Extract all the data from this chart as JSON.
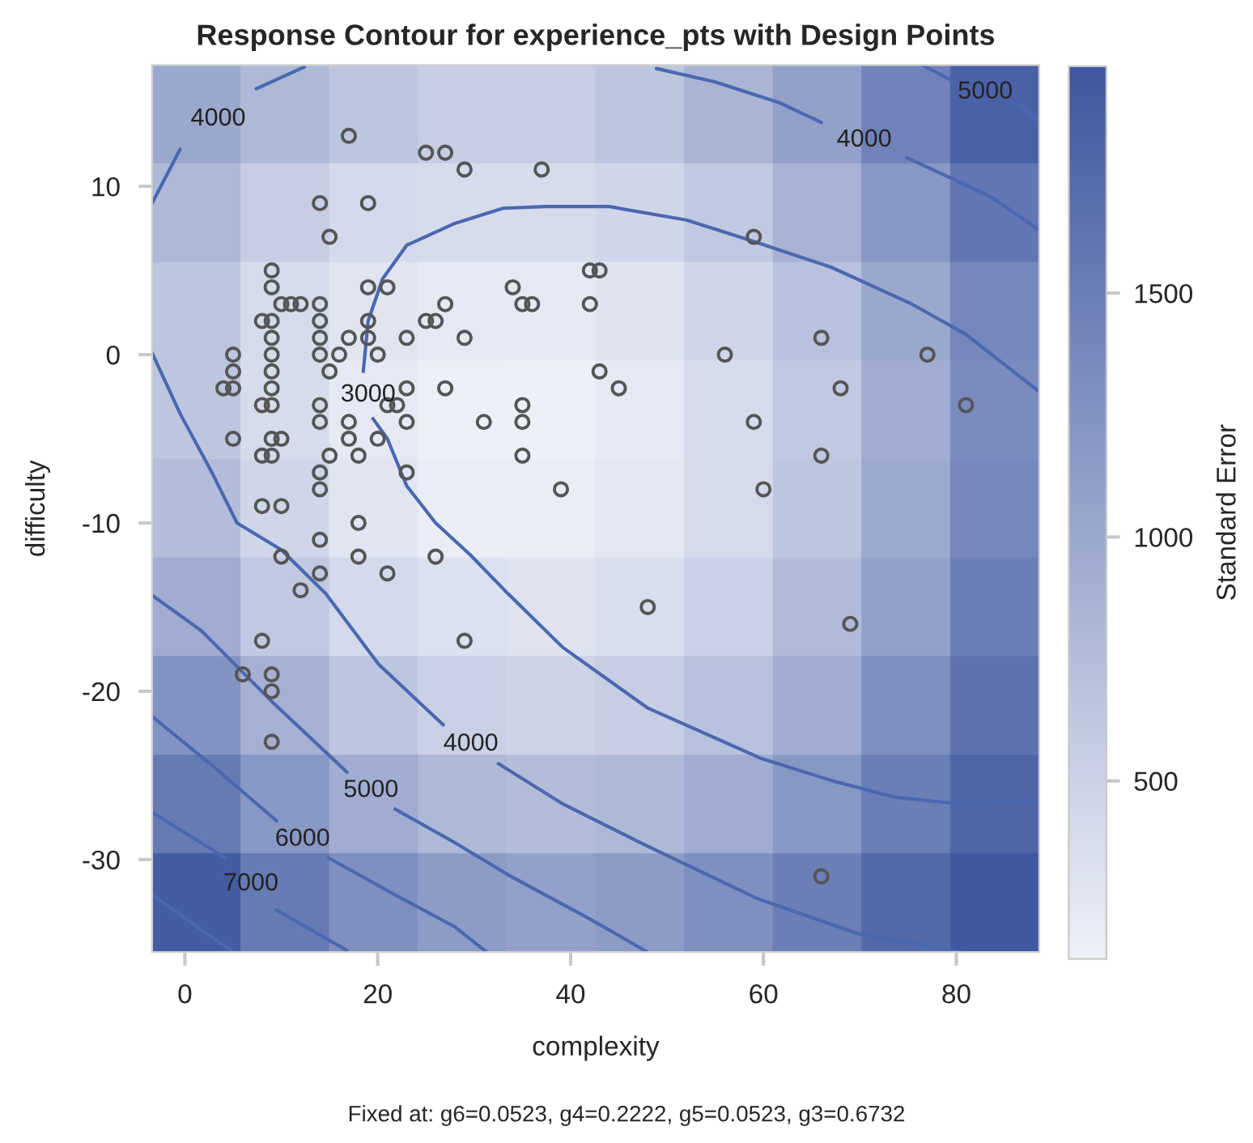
{
  "chart_data": {
    "type": "heatmap",
    "title": "Response Contour for experience_pts with Design Points",
    "xlabel": "complexity",
    "ylabel": "difficulty",
    "clabel": "Standard Error",
    "xlim": [
      -3.4,
      88.6
    ],
    "ylim": [
      -35.5,
      17.2
    ],
    "xticks": [
      0,
      20,
      40,
      60,
      80
    ],
    "yticks": [
      -30,
      -20,
      -10,
      0,
      10
    ],
    "clim": [
      135,
      1965
    ],
    "cticks": [
      500,
      1000,
      1500
    ],
    "series": [
      {
        "type": "line",
        "name": "3000",
        "color": "#4a68b0",
        "x": [
          88.6,
          81,
          75.4,
          67,
          58.6,
          52,
          44,
          37.5,
          33,
          28,
          23,
          20.5,
          19,
          18.5,
          null,
          19.5,
          21,
          23,
          26,
          29.6,
          33.5,
          39.2,
          48,
          59.8,
          67,
          73.7,
          80.4,
          88.6
        ],
        "values": [
          -2.2,
          1.2,
          3,
          5.2,
          6.8,
          8,
          8.8,
          8.8,
          8.7,
          7.8,
          6.5,
          4.5,
          2,
          -1,
          null,
          -3.8,
          -5,
          -7.8,
          -10,
          -11.9,
          -14.2,
          -17.4,
          -21,
          -24,
          -25.3,
          -26.3,
          -26.7,
          -26.5
        ]
      },
      {
        "type": "line",
        "name": "4000",
        "color": "#4a68b0",
        "x": [
          -3.4,
          -0.5,
          null,
          7.4,
          12.4
        ],
        "values": [
          9,
          12.2,
          null,
          15.8,
          17.1
        ]
      },
      {
        "type": "line",
        "name": "4000",
        "color": "#4a68b0",
        "x": [
          48.9,
          55,
          61.5,
          66,
          null,
          74.9,
          79,
          83.8,
          88.6
        ],
        "values": [
          17,
          16.2,
          15,
          13.8,
          null,
          11.7,
          10.6,
          9.3,
          7.4
        ]
      },
      {
        "type": "line",
        "name": "4000",
        "color": "#4a68b0",
        "x": [
          -3.4,
          -0.5,
          2.8,
          5.4,
          10,
          14.6,
          20.1,
          26.8,
          null,
          32.5,
          39.2,
          47.6,
          59.3,
          69.8,
          80.4
        ],
        "values": [
          0.1,
          -3.5,
          -7,
          -10,
          -11.6,
          -14.2,
          -18.4,
          -22,
          null,
          -24.3,
          -26.7,
          -29.1,
          -32.3,
          -34.4,
          -35.5
        ]
      },
      {
        "type": "line",
        "name": "5000",
        "color": "#4a68b0",
        "x": [
          76.5,
          79.5,
          null,
          86.5,
          88.6
        ],
        "values": [
          17.2,
          16.3,
          null,
          14.9,
          13.8
        ]
      },
      {
        "type": "line",
        "name": "5000",
        "color": "#4a68b0",
        "x": [
          -3.4,
          1.7,
          9,
          16.8,
          null,
          21.8,
          28,
          33.5,
          41.9,
          48
        ],
        "values": [
          -14.3,
          -16.4,
          -20.6,
          -24.8,
          null,
          -27,
          -29,
          -30.9,
          -33.5,
          -35.5
        ]
      },
      {
        "type": "line",
        "name": "6000",
        "color": "#4a68b0",
        "x": [
          -3.4,
          2.8,
          9.5,
          null,
          14.9,
          21.8,
          28,
          31.3
        ],
        "values": [
          -21.5,
          -24.4,
          -27.7,
          null,
          -29.9,
          -32.1,
          -34,
          -35.5
        ]
      },
      {
        "type": "line",
        "name": "7000",
        "color": "#4a68b0",
        "x": [
          -3.4,
          4.2,
          null,
          9.5,
          16.8
        ],
        "values": [
          -27.2,
          -29.9,
          null,
          -33,
          -35.4
        ]
      },
      {
        "type": "line",
        "color": "#4a68b0",
        "x": [
          -3.4,
          5
        ],
        "values": [
          -32.1,
          -35.5
        ]
      },
      {
        "type": "scatter",
        "color": "#555555",
        "marker": "circle",
        "x": [
          17,
          25,
          27,
          29,
          37,
          14,
          19,
          15,
          59,
          9,
          42,
          43,
          9,
          19,
          21,
          34,
          10,
          11,
          12,
          14,
          27,
          35,
          36,
          42,
          8,
          9,
          14,
          19,
          25,
          26,
          9,
          14,
          17,
          19,
          23,
          29,
          66,
          5,
          9,
          14,
          16,
          20,
          56,
          77,
          5,
          9,
          15,
          43,
          4,
          5,
          9,
          23,
          27,
          45,
          68,
          8,
          9,
          14,
          21,
          22,
          35,
          81,
          14,
          17,
          23,
          31,
          35,
          59,
          5,
          9,
          10,
          17,
          20,
          8,
          9,
          15,
          18,
          35,
          66,
          14,
          23,
          14,
          39,
          60,
          8,
          10,
          18,
          14,
          10,
          18,
          26,
          14,
          21,
          12,
          48,
          69,
          8,
          29,
          6,
          9,
          9,
          9,
          66
        ],
        "values": [
          13,
          12,
          12,
          11,
          11,
          9,
          9,
          7,
          7,
          5,
          5,
          5,
          4,
          4,
          4,
          4,
          3,
          3,
          3,
          3,
          3,
          3,
          3,
          3,
          2,
          2,
          2,
          2,
          2,
          2,
          1,
          1,
          1,
          1,
          1,
          1,
          1,
          0,
          0,
          0,
          0,
          0,
          0,
          0,
          -1,
          -1,
          -1,
          -1,
          -2,
          -2,
          -2,
          -2,
          -2,
          -2,
          -2,
          -3,
          -3,
          -3,
          -3,
          -3,
          -3,
          -3,
          -4,
          -4,
          -4,
          -4,
          -4,
          -4,
          -5,
          -5,
          -5,
          -5,
          -5,
          -6,
          -6,
          -6,
          -6,
          -6,
          -6,
          -7,
          -7,
          -8,
          -8,
          -8,
          -9,
          -9,
          -10,
          -11,
          -12,
          -12,
          -12,
          -13,
          -13,
          -14,
          -15,
          -16,
          -17,
          -17,
          -19,
          -19,
          -20,
          -23,
          -31
        ]
      }
    ],
    "cells": [
      [
        1000,
        800,
        650,
        550,
        550,
        650,
        850,
        1100,
        1450,
        1850
      ],
      [
        800,
        550,
        420,
        380,
        380,
        450,
        620,
        880,
        1200,
        1600
      ],
      [
        650,
        400,
        280,
        230,
        230,
        300,
        450,
        700,
        1000,
        1400
      ],
      [
        650,
        380,
        230,
        160,
        150,
        230,
        380,
        620,
        950,
        1350
      ],
      [
        750,
        450,
        280,
        190,
        180,
        250,
        400,
        650,
        980,
        1400
      ],
      [
        950,
        620,
        420,
        330,
        300,
        370,
        520,
        780,
        1100,
        1500
      ],
      [
        1250,
        900,
        650,
        520,
        480,
        550,
        700,
        950,
        1300,
        1650
      ],
      [
        1550,
        1200,
        950,
        800,
        750,
        800,
        950,
        1200,
        1500,
        1800
      ],
      [
        1900,
        1550,
        1300,
        1150,
        1100,
        1150,
        1300,
        1500,
        1750,
        1950
      ]
    ],
    "annotations": [
      "Fixed at: g6=0.0523, g4=0.2222, g5=0.0523, g3=0.6732"
    ]
  }
}
